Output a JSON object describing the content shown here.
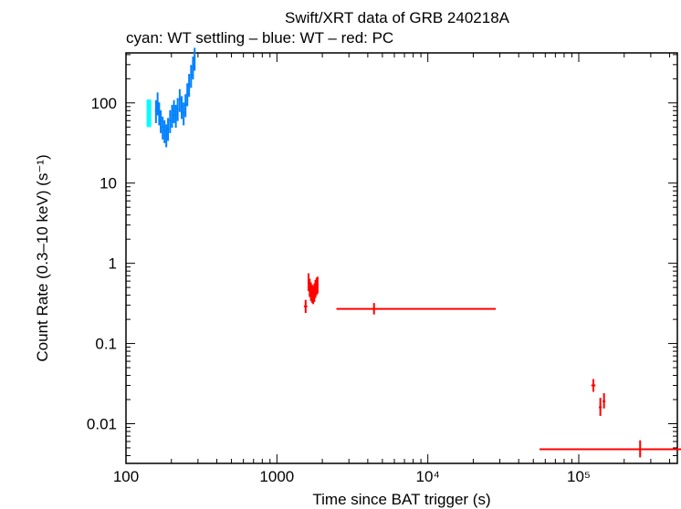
{
  "chart_data": {
    "type": "scatter",
    "title": "Swift/XRT data of GRB 240218A",
    "subtitle": "cyan: WT settling – blue: WT – red: PC",
    "xlabel": "Time since BAT trigger (s)",
    "ylabel": "Count Rate (0.3–10 keV) (s⁻¹)",
    "xscale": "log",
    "yscale": "log",
    "xlim": [
      100,
      450000
    ],
    "ylim": [
      0.0032,
      420
    ],
    "x_ticks": [
      {
        "value": 100,
        "label": "100"
      },
      {
        "value": 1000,
        "label": "1000"
      },
      {
        "value": 10000,
        "label": "10⁴"
      },
      {
        "value": 100000,
        "label": "10⁵"
      }
    ],
    "y_ticks": [
      {
        "value": 100,
        "label": "100"
      },
      {
        "value": 10,
        "label": "10"
      },
      {
        "value": 1,
        "label": "1"
      },
      {
        "value": 0.1,
        "label": "0.1"
      },
      {
        "value": 0.01,
        "label": "0.01"
      }
    ],
    "grid": false,
    "series": [
      {
        "color": "#00ffff",
        "points": [
          {
            "x": 139,
            "y": 100,
            "xerr": [
              1,
              1
            ],
            "yerr": [
              50,
              110
            ]
          },
          {
            "x": 141,
            "y": 80,
            "xerr": [
              1,
              1
            ],
            "yerr": [
              50,
              110
            ]
          },
          {
            "x": 143,
            "y": 70,
            "xerr": [
              1,
              1
            ],
            "yerr": [
              50,
              110
            ]
          },
          {
            "x": 145,
            "y": 95,
            "xerr": [
              1,
              1
            ],
            "yerr": [
              50,
              110
            ]
          }
        ]
      },
      {
        "color": "#0080ff",
        "points": [
          {
            "x": 158,
            "y": 80
          },
          {
            "x": 162,
            "y": 100
          },
          {
            "x": 166,
            "y": 75
          },
          {
            "x": 170,
            "y": 60
          },
          {
            "x": 175,
            "y": 50
          },
          {
            "x": 180,
            "y": 45
          },
          {
            "x": 185,
            "y": 40
          },
          {
            "x": 190,
            "y": 48
          },
          {
            "x": 196,
            "y": 60
          },
          {
            "x": 202,
            "y": 70
          },
          {
            "x": 208,
            "y": 80
          },
          {
            "x": 214,
            "y": 70
          },
          {
            "x": 220,
            "y": 85
          },
          {
            "x": 227,
            "y": 110
          },
          {
            "x": 234,
            "y": 90
          },
          {
            "x": 241,
            "y": 75
          },
          {
            "x": 248,
            "y": 95
          },
          {
            "x": 255,
            "y": 130
          },
          {
            "x": 262,
            "y": 170
          },
          {
            "x": 270,
            "y": 220
          },
          {
            "x": 278,
            "y": 280
          },
          {
            "x": 285,
            "y": 360
          }
        ]
      },
      {
        "color": "#ff0000",
        "points": [
          {
            "x": 1550,
            "y": 0.29,
            "xerr": [
              40,
              40
            ],
            "yerr": [
              0.24,
              0.35
            ]
          },
          {
            "x": 1620,
            "y": 0.6,
            "xerr": [
              15,
              15
            ],
            "yerr": [
              0.45,
              0.75
            ]
          },
          {
            "x": 1650,
            "y": 0.5,
            "xerr": [
              15,
              15
            ],
            "yerr": [
              0.38,
              0.64
            ]
          },
          {
            "x": 1680,
            "y": 0.45,
            "xerr": [
              15,
              15
            ],
            "yerr": [
              0.34,
              0.58
            ]
          },
          {
            "x": 1710,
            "y": 0.42,
            "xerr": [
              15,
              15
            ],
            "yerr": [
              0.32,
              0.54
            ]
          },
          {
            "x": 1740,
            "y": 0.4,
            "xerr": [
              15,
              15
            ],
            "yerr": [
              0.31,
              0.52
            ]
          },
          {
            "x": 1770,
            "y": 0.43,
            "xerr": [
              15,
              15
            ],
            "yerr": [
              0.33,
              0.56
            ]
          },
          {
            "x": 1800,
            "y": 0.48,
            "xerr": [
              15,
              15
            ],
            "yerr": [
              0.37,
              0.62
            ]
          },
          {
            "x": 1830,
            "y": 0.52,
            "xerr": [
              15,
              15
            ],
            "yerr": [
              0.4,
              0.66
            ]
          },
          {
            "x": 1860,
            "y": 0.55,
            "xerr": [
              15,
              15
            ],
            "yerr": [
              0.42,
              0.68
            ]
          },
          {
            "x": 4400,
            "y": 0.27,
            "xerr": [
              1920,
              23800
            ],
            "yerr": [
              0.23,
              0.32
            ]
          },
          {
            "x": 125000,
            "y": 0.03,
            "xerr": [
              4000,
              4000
            ],
            "yerr": [
              0.025,
              0.036
            ]
          },
          {
            "x": 139000,
            "y": 0.016,
            "xerr": [
              3000,
              3000
            ],
            "yerr": [
              0.0125,
              0.021
            ]
          },
          {
            "x": 147000,
            "y": 0.019,
            "xerr": [
              3000,
              3000
            ],
            "yerr": [
              0.0155,
              0.024
            ]
          },
          {
            "x": 255000,
            "y": 0.0048,
            "xerr": [
              200000,
              330000
            ],
            "yerr": [
              0.0038,
              0.0062
            ]
          }
        ]
      }
    ]
  }
}
